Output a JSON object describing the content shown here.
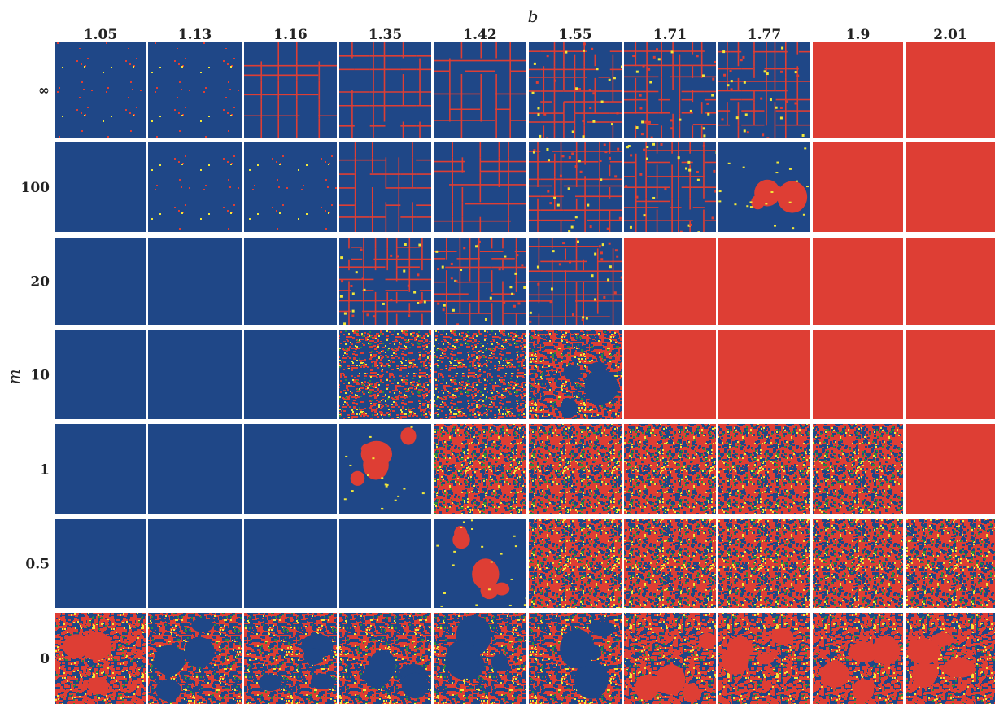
{
  "chart_data": {
    "type": "heatmap",
    "title": "",
    "xlabel": "b",
    "ylabel": "m",
    "x_ticks": [
      "1.05",
      "1.13",
      "1.16",
      "1.35",
      "1.42",
      "1.55",
      "1.71",
      "1.77",
      "1.9",
      "2.01"
    ],
    "y_ticks": [
      "∞",
      "100",
      "20",
      "10",
      "1",
      "0.5",
      "0"
    ],
    "colors": {
      "cooperator": "#1f4787",
      "defector": "#de3e34",
      "cooperator_new": "#f2e83a",
      "defector_new": "#2e8a3c",
      "separator": "#e8e8e8"
    },
    "cells": [
      [
        {
          "pattern": "sparse"
        },
        {
          "pattern": "sparse"
        },
        {
          "pattern": "grid-sparse"
        },
        {
          "pattern": "grid"
        },
        {
          "pattern": "grid"
        },
        {
          "pattern": "grid-dense"
        },
        {
          "pattern": "grid-dense"
        },
        {
          "pattern": "grid-dense"
        },
        {
          "pattern": "solid-defect"
        },
        {
          "pattern": "solid-defect"
        }
      ],
      [
        {
          "pattern": "solid-coop"
        },
        {
          "pattern": "sparse"
        },
        {
          "pattern": "sparse"
        },
        {
          "pattern": "grid"
        },
        {
          "pattern": "grid"
        },
        {
          "pattern": "grid-dense"
        },
        {
          "pattern": "grid-dense"
        },
        {
          "pattern": "blobs-coop"
        },
        {
          "pattern": "solid-defect"
        },
        {
          "pattern": "solid-defect"
        }
      ],
      [
        {
          "pattern": "solid-coop"
        },
        {
          "pattern": "solid-coop"
        },
        {
          "pattern": "solid-coop"
        },
        {
          "pattern": "grid-dense"
        },
        {
          "pattern": "grid-dense"
        },
        {
          "pattern": "grid-dense"
        },
        {
          "pattern": "solid-defect"
        },
        {
          "pattern": "solid-defect"
        },
        {
          "pattern": "solid-defect"
        },
        {
          "pattern": "solid-defect"
        }
      ],
      [
        {
          "pattern": "solid-coop"
        },
        {
          "pattern": "solid-coop"
        },
        {
          "pattern": "solid-coop"
        },
        {
          "pattern": "noisy-coop"
        },
        {
          "pattern": "noisy-coop"
        },
        {
          "pattern": "mixed-defect"
        },
        {
          "pattern": "solid-defect"
        },
        {
          "pattern": "solid-defect"
        },
        {
          "pattern": "solid-defect"
        },
        {
          "pattern": "solid-defect"
        }
      ],
      [
        {
          "pattern": "solid-coop"
        },
        {
          "pattern": "solid-coop"
        },
        {
          "pattern": "solid-coop"
        },
        {
          "pattern": "blobs-coop"
        },
        {
          "pattern": "noisy-defect"
        },
        {
          "pattern": "noisy-defect"
        },
        {
          "pattern": "noisy-defect"
        },
        {
          "pattern": "noisy-defect"
        },
        {
          "pattern": "noisy-defect"
        },
        {
          "pattern": "solid-defect"
        }
      ],
      [
        {
          "pattern": "solid-coop"
        },
        {
          "pattern": "solid-coop"
        },
        {
          "pattern": "solid-coop"
        },
        {
          "pattern": "solid-coop"
        },
        {
          "pattern": "blobs-coop"
        },
        {
          "pattern": "noisy-defect"
        },
        {
          "pattern": "noisy-defect"
        },
        {
          "pattern": "noisy-defect"
        },
        {
          "pattern": "noisy-defect"
        },
        {
          "pattern": "noisy-defect"
        }
      ],
      [
        {
          "pattern": "mixed"
        },
        {
          "pattern": "mixed-defect"
        },
        {
          "pattern": "mixed-defect"
        },
        {
          "pattern": "mixed-defect"
        },
        {
          "pattern": "mixed-defect"
        },
        {
          "pattern": "mixed-defect"
        },
        {
          "pattern": "mixed"
        },
        {
          "pattern": "mixed"
        },
        {
          "pattern": "mixed"
        },
        {
          "pattern": "mixed"
        }
      ]
    ]
  }
}
